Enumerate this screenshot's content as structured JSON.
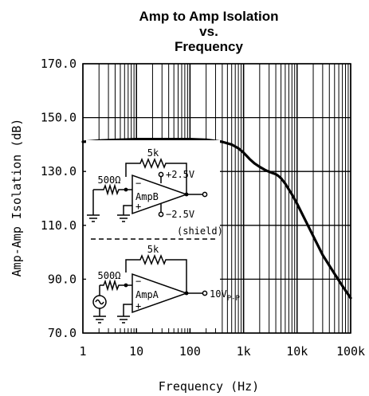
{
  "chart_data": {
    "type": "line",
    "title_lines": [
      "Amp to Amp Isolation",
      "vs.",
      "Frequency"
    ],
    "xlabel": "Frequency (Hz)",
    "ylabel": "Amp-Amp Isolation (dB)",
    "x_scale": "log",
    "xlim": [
      1,
      100000
    ],
    "ylim": [
      70,
      170
    ],
    "x_ticks": [
      {
        "value": 1,
        "label": "1"
      },
      {
        "value": 10,
        "label": "10"
      },
      {
        "value": 100,
        "label": "100"
      },
      {
        "value": 1000,
        "label": "1k"
      },
      {
        "value": 10000,
        "label": "10k"
      },
      {
        "value": 100000,
        "label": "100k"
      }
    ],
    "y_ticks": [
      {
        "value": 170,
        "label": "170.0"
      },
      {
        "value": 150,
        "label": "150.0"
      },
      {
        "value": 130,
        "label": "130.0"
      },
      {
        "value": 110,
        "label": "110.0"
      },
      {
        "value": 90,
        "label": "90.0"
      },
      {
        "value": 70,
        "label": "70.0"
      }
    ],
    "grid": true,
    "series": [
      {
        "x": [
          1,
          2,
          5,
          10,
          20,
          50,
          100,
          200,
          400,
          600,
          800,
          1000,
          1300,
          1600,
          2000,
          2500,
          3000,
          3500,
          4000,
          4500,
          5000,
          6000,
          8000,
          10000,
          15000,
          20000,
          30000,
          50000,
          70000,
          100000
        ],
        "y": [
          141,
          141.5,
          141.8,
          142,
          142,
          142,
          142,
          141.8,
          141,
          140,
          138.6,
          137,
          134.6,
          133,
          131.7,
          130.6,
          129.9,
          129.4,
          129,
          128.3,
          127.5,
          125.5,
          121.5,
          118,
          111,
          106,
          99,
          92,
          87.5,
          83
        ]
      }
    ]
  },
  "schematic": {
    "ampB": {
      "feedback_resistor": "5k",
      "input_resistor": "500Ω",
      "label": "AmpB",
      "minus": "−",
      "plus": "+",
      "pos_supply": "+2.5V",
      "neg_supply": "−2.5V"
    },
    "shield_label": "(shield)",
    "ampA": {
      "feedback_resistor": "5k",
      "input_resistor": "500Ω",
      "label": "AmpA",
      "minus": "−",
      "plus": "+",
      "output_main": "10V",
      "output_sub": "P-P"
    }
  }
}
